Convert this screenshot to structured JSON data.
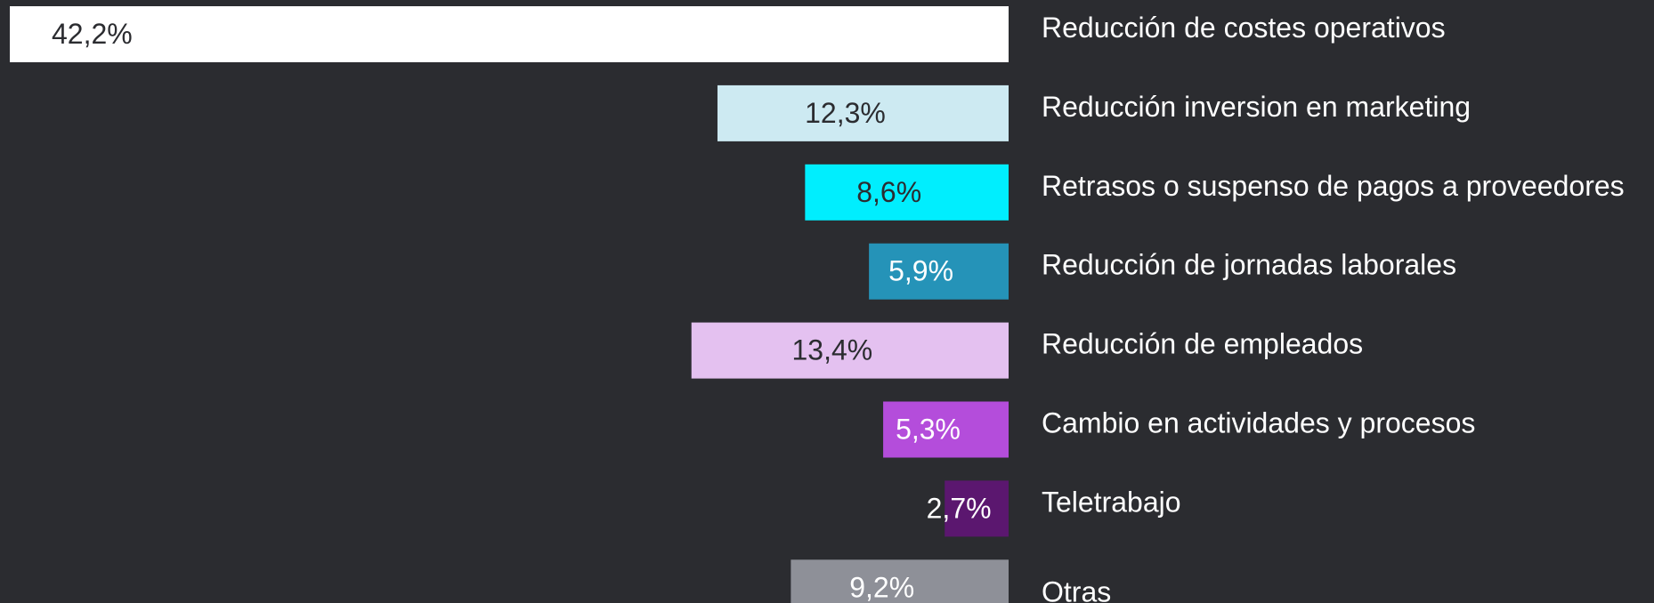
{
  "chart_data": {
    "type": "barh",
    "categories": [
      "Reducción de costes operativos",
      "Reducción inversion en marketing",
      "Retrasos o suspenso de pagos a proveedores",
      "Reducción de jornadas laborales",
      "Reducción de empleados",
      "Cambio en actividades y procesos",
      "Teletrabajo",
      "Otras"
    ],
    "values": [
      42.2,
      12.3,
      8.6,
      5.9,
      13.4,
      5.3,
      2.7,
      9.2
    ],
    "value_labels": [
      "42,2%",
      "12,3%",
      "8,6%",
      "5,9%",
      "13,4%",
      "5,3%",
      "2,7%",
      "9,2%"
    ],
    "colors": [
      "#ffffff",
      "#cdeaf2",
      "#00eefe",
      "#2593b8",
      "#e4c1f0",
      "#b44ddb",
      "#5b176f",
      "#8e9098"
    ],
    "label_colors": [
      "#2b2c30",
      "#2b2c30",
      "#2b2c30",
      "#ffffff",
      "#2b2c30",
      "#ffffff",
      "#ffffff",
      "#ffffff"
    ]
  }
}
